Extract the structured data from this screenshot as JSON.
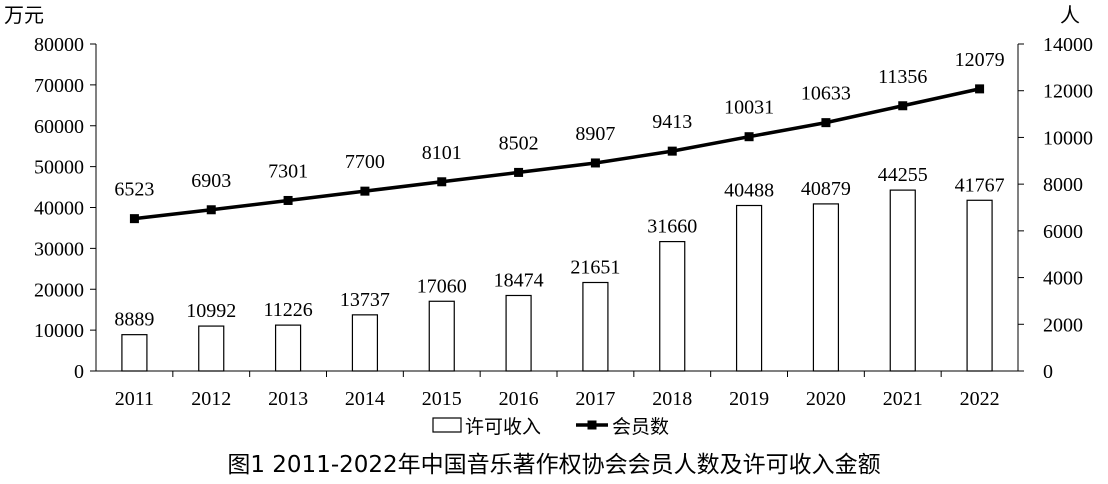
{
  "caption": "图1 2011-2022年中国音乐著作权协会会员人数及许可收入金额",
  "chart_data": {
    "type": "bar",
    "categories": [
      "2011",
      "2012",
      "2013",
      "2014",
      "2015",
      "2016",
      "2017",
      "2018",
      "2019",
      "2020",
      "2021",
      "2022"
    ],
    "series": [
      {
        "name": "许可收入",
        "type": "bar",
        "axis": "left",
        "values": [
          8889,
          10992,
          11226,
          13737,
          17060,
          18474,
          21651,
          31660,
          40488,
          40879,
          44255,
          41767
        ],
        "labels": [
          "8889",
          "10992",
          "11226",
          "13737",
          "17060",
          "18474",
          "21651",
          "31660",
          "40488",
          "40879",
          "44255",
          "41767"
        ]
      },
      {
        "name": "会员数",
        "type": "line",
        "axis": "right",
        "values": [
          6523,
          6903,
          7301,
          7700,
          8101,
          8502,
          8907,
          9413,
          10031,
          10633,
          11356,
          12079
        ],
        "labels": [
          "6523",
          "6903",
          "7301",
          "7700",
          "8101",
          "8502",
          "8907",
          "9413",
          "10031",
          "10633",
          "11356",
          "12079"
        ]
      }
    ],
    "y_left": {
      "label": "万元",
      "range": [
        0,
        80000
      ],
      "ticks": [
        "0",
        "10000",
        "20000",
        "30000",
        "40000",
        "50000",
        "60000",
        "70000",
        "80000"
      ]
    },
    "y_right": {
      "label": "人",
      "range": [
        0,
        14000
      ],
      "ticks": [
        "0",
        "2000",
        "4000",
        "6000",
        "8000",
        "10000",
        "12000",
        "14000"
      ]
    },
    "legend_position": "bottom",
    "grid": false
  }
}
